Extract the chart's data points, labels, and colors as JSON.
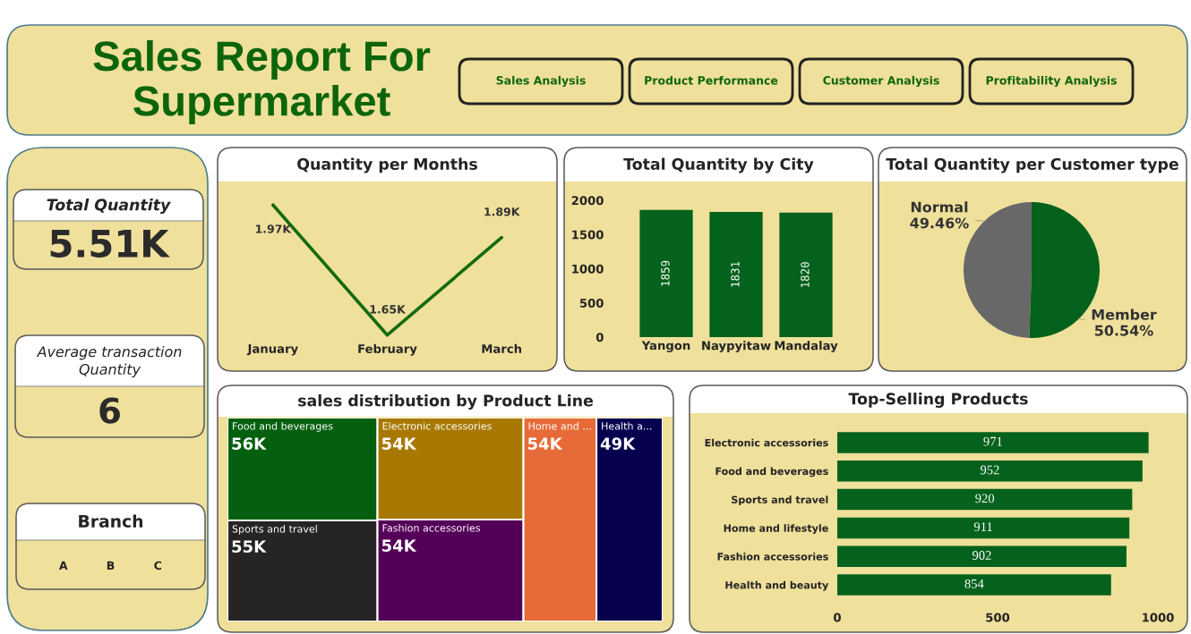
{
  "chart_data": [
    {
      "type": "other",
      "title": "Sales Report For\nSupermarket",
      "annotations": [
        "Sales Analysis",
        "Product Performance",
        "Customer Analysis",
        "Profitability Analysis"
      ]
    },
    {
      "type": "other",
      "title": "Total Quantity",
      "annotations": [
        "5.51K"
      ]
    },
    {
      "type": "other",
      "title": "Average transaction\nQuantity",
      "annotations": [
        "6"
      ]
    },
    {
      "type": "other",
      "title": "Branch",
      "categories": [
        "A",
        "B",
        "C"
      ]
    },
    {
      "type": "line",
      "title": "Quantity per Months",
      "categories": [
        "January",
        "February",
        "March"
      ],
      "values": [
        1970,
        1650,
        1890
      ],
      "value_labels": [
        "1.97K",
        "1.65K",
        "1.89K"
      ],
      "color": "#136b0e",
      "tick_labels": "x"
    },
    {
      "type": "bar",
      "title": "Total Quantity by City",
      "categories": [
        "Yangon",
        "Naypyitaw",
        "Mandalay"
      ],
      "values": [
        1859,
        1831,
        1820
      ],
      "color": "#04621c",
      "ylim": [
        0,
        2000
      ],
      "yticks": [
        0,
        500,
        1000,
        1500,
        2000
      ],
      "data_labels": true
    },
    {
      "type": "pie",
      "title": "Total Quantity per Customer type",
      "categories": [
        "Normal",
        "Member"
      ],
      "values": [
        49.46,
        50.54
      ],
      "value_labels": [
        "49.46%",
        "50.54%"
      ],
      "colors": [
        "#686868",
        "#04621c"
      ]
    },
    {
      "type": "other",
      "title": "sales distribution by Product Line",
      "categories": [
        "Food and beverages",
        "Sports and travel",
        "Electronic accessories",
        "Fashion accessories",
        "Home and ...",
        "Health a..."
      ],
      "values": [
        56,
        55,
        54,
        54,
        54,
        49
      ],
      "value_labels": [
        "56K",
        "55K",
        "54K",
        "54K",
        "54K",
        "49K"
      ],
      "colors": [
        "#04600f",
        "#262424",
        "#a87800",
        "#540058",
        "#e76b38",
        "#07004f"
      ]
    },
    {
      "type": "bar",
      "orientation": "horizontal",
      "title": "Top-Selling Products",
      "categories": [
        "Electronic accessories",
        "Food and beverages",
        "Sports and travel",
        "Home and lifestyle",
        "Fashion accessories",
        "Health and beauty"
      ],
      "values": [
        971,
        952,
        920,
        911,
        902,
        854
      ],
      "color": "#04621c",
      "xlim": [
        0,
        1000
      ],
      "xticks": [
        0,
        500,
        1000
      ],
      "data_labels": true
    }
  ]
}
